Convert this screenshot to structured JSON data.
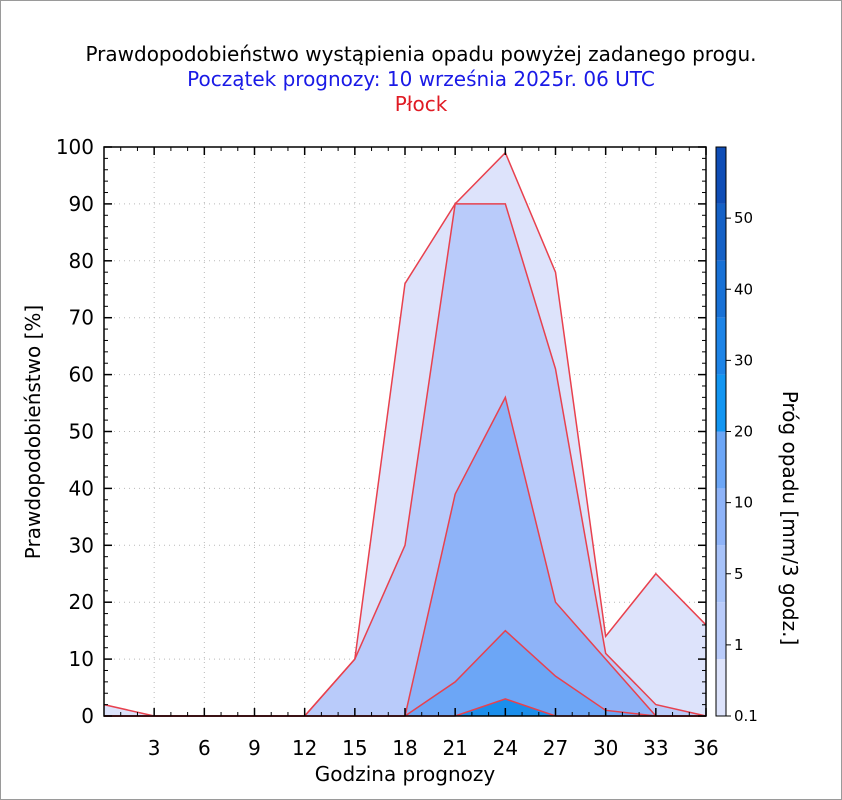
{
  "header": {
    "title": "Prawdopodobieństwo wystąpienia opadu powyżej zadanego progu.",
    "subtitle": "Początek prognozy: 10 września 2025r. 06 UTC",
    "location": "Płock"
  },
  "colors": {
    "outline": "#e8414e",
    "axis": "#000000",
    "grid": "#b9b9b9"
  },
  "chart_data": {
    "type": "area",
    "xlabel": "Godzina prognozy",
    "ylabel": "Prawdopodobieństwo [%]",
    "xlim": [
      0,
      36
    ],
    "ylim": [
      0,
      100
    ],
    "x": [
      0,
      3,
      6,
      9,
      12,
      15,
      18,
      21,
      24,
      27,
      30,
      33,
      36
    ],
    "x_ticks": [
      3,
      6,
      9,
      12,
      15,
      18,
      21,
      24,
      27,
      30,
      33,
      36
    ],
    "y_ticks": [
      0,
      10,
      20,
      30,
      40,
      50,
      60,
      70,
      80,
      90,
      100
    ],
    "grid": true,
    "series": [
      {
        "threshold": "0.1",
        "color": "#dde3fb",
        "values": [
          2,
          0,
          0,
          0,
          0,
          10,
          76,
          90,
          99,
          78,
          14,
          25,
          16
        ]
      },
      {
        "threshold": "1",
        "color": "#b9cbfa",
        "values": [
          0,
          0,
          0,
          0,
          0,
          10,
          30,
          90,
          90,
          61,
          11,
          2,
          0
        ]
      },
      {
        "threshold": "5",
        "color": "#8eb3f8",
        "values": [
          0,
          0,
          0,
          0,
          0,
          0,
          0,
          39,
          56,
          20,
          10,
          0,
          0
        ]
      },
      {
        "threshold": "10",
        "color": "#6ca6f6",
        "values": [
          0,
          0,
          0,
          0,
          0,
          0,
          0,
          6,
          15,
          7,
          1,
          0,
          0
        ]
      },
      {
        "threshold": "20",
        "color": "#1b8fec",
        "values": [
          0,
          0,
          0,
          0,
          0,
          0,
          0,
          0,
          3,
          0,
          0,
          0,
          0
        ]
      }
    ],
    "colorbar": {
      "label": "Próg opadu [mm/3 godz.]",
      "ticks": [
        "0.1",
        "1",
        "5",
        "10",
        "20",
        "30",
        "40",
        "50"
      ],
      "bands": [
        "#dde3fb",
        "#b9cbfa",
        "#a7c2f9",
        "#8eb3f8",
        "#6ca6f6",
        "#1396f2",
        "#1d84e7",
        "#1871d6",
        "#1561c6",
        "#0f4db6"
      ]
    }
  }
}
